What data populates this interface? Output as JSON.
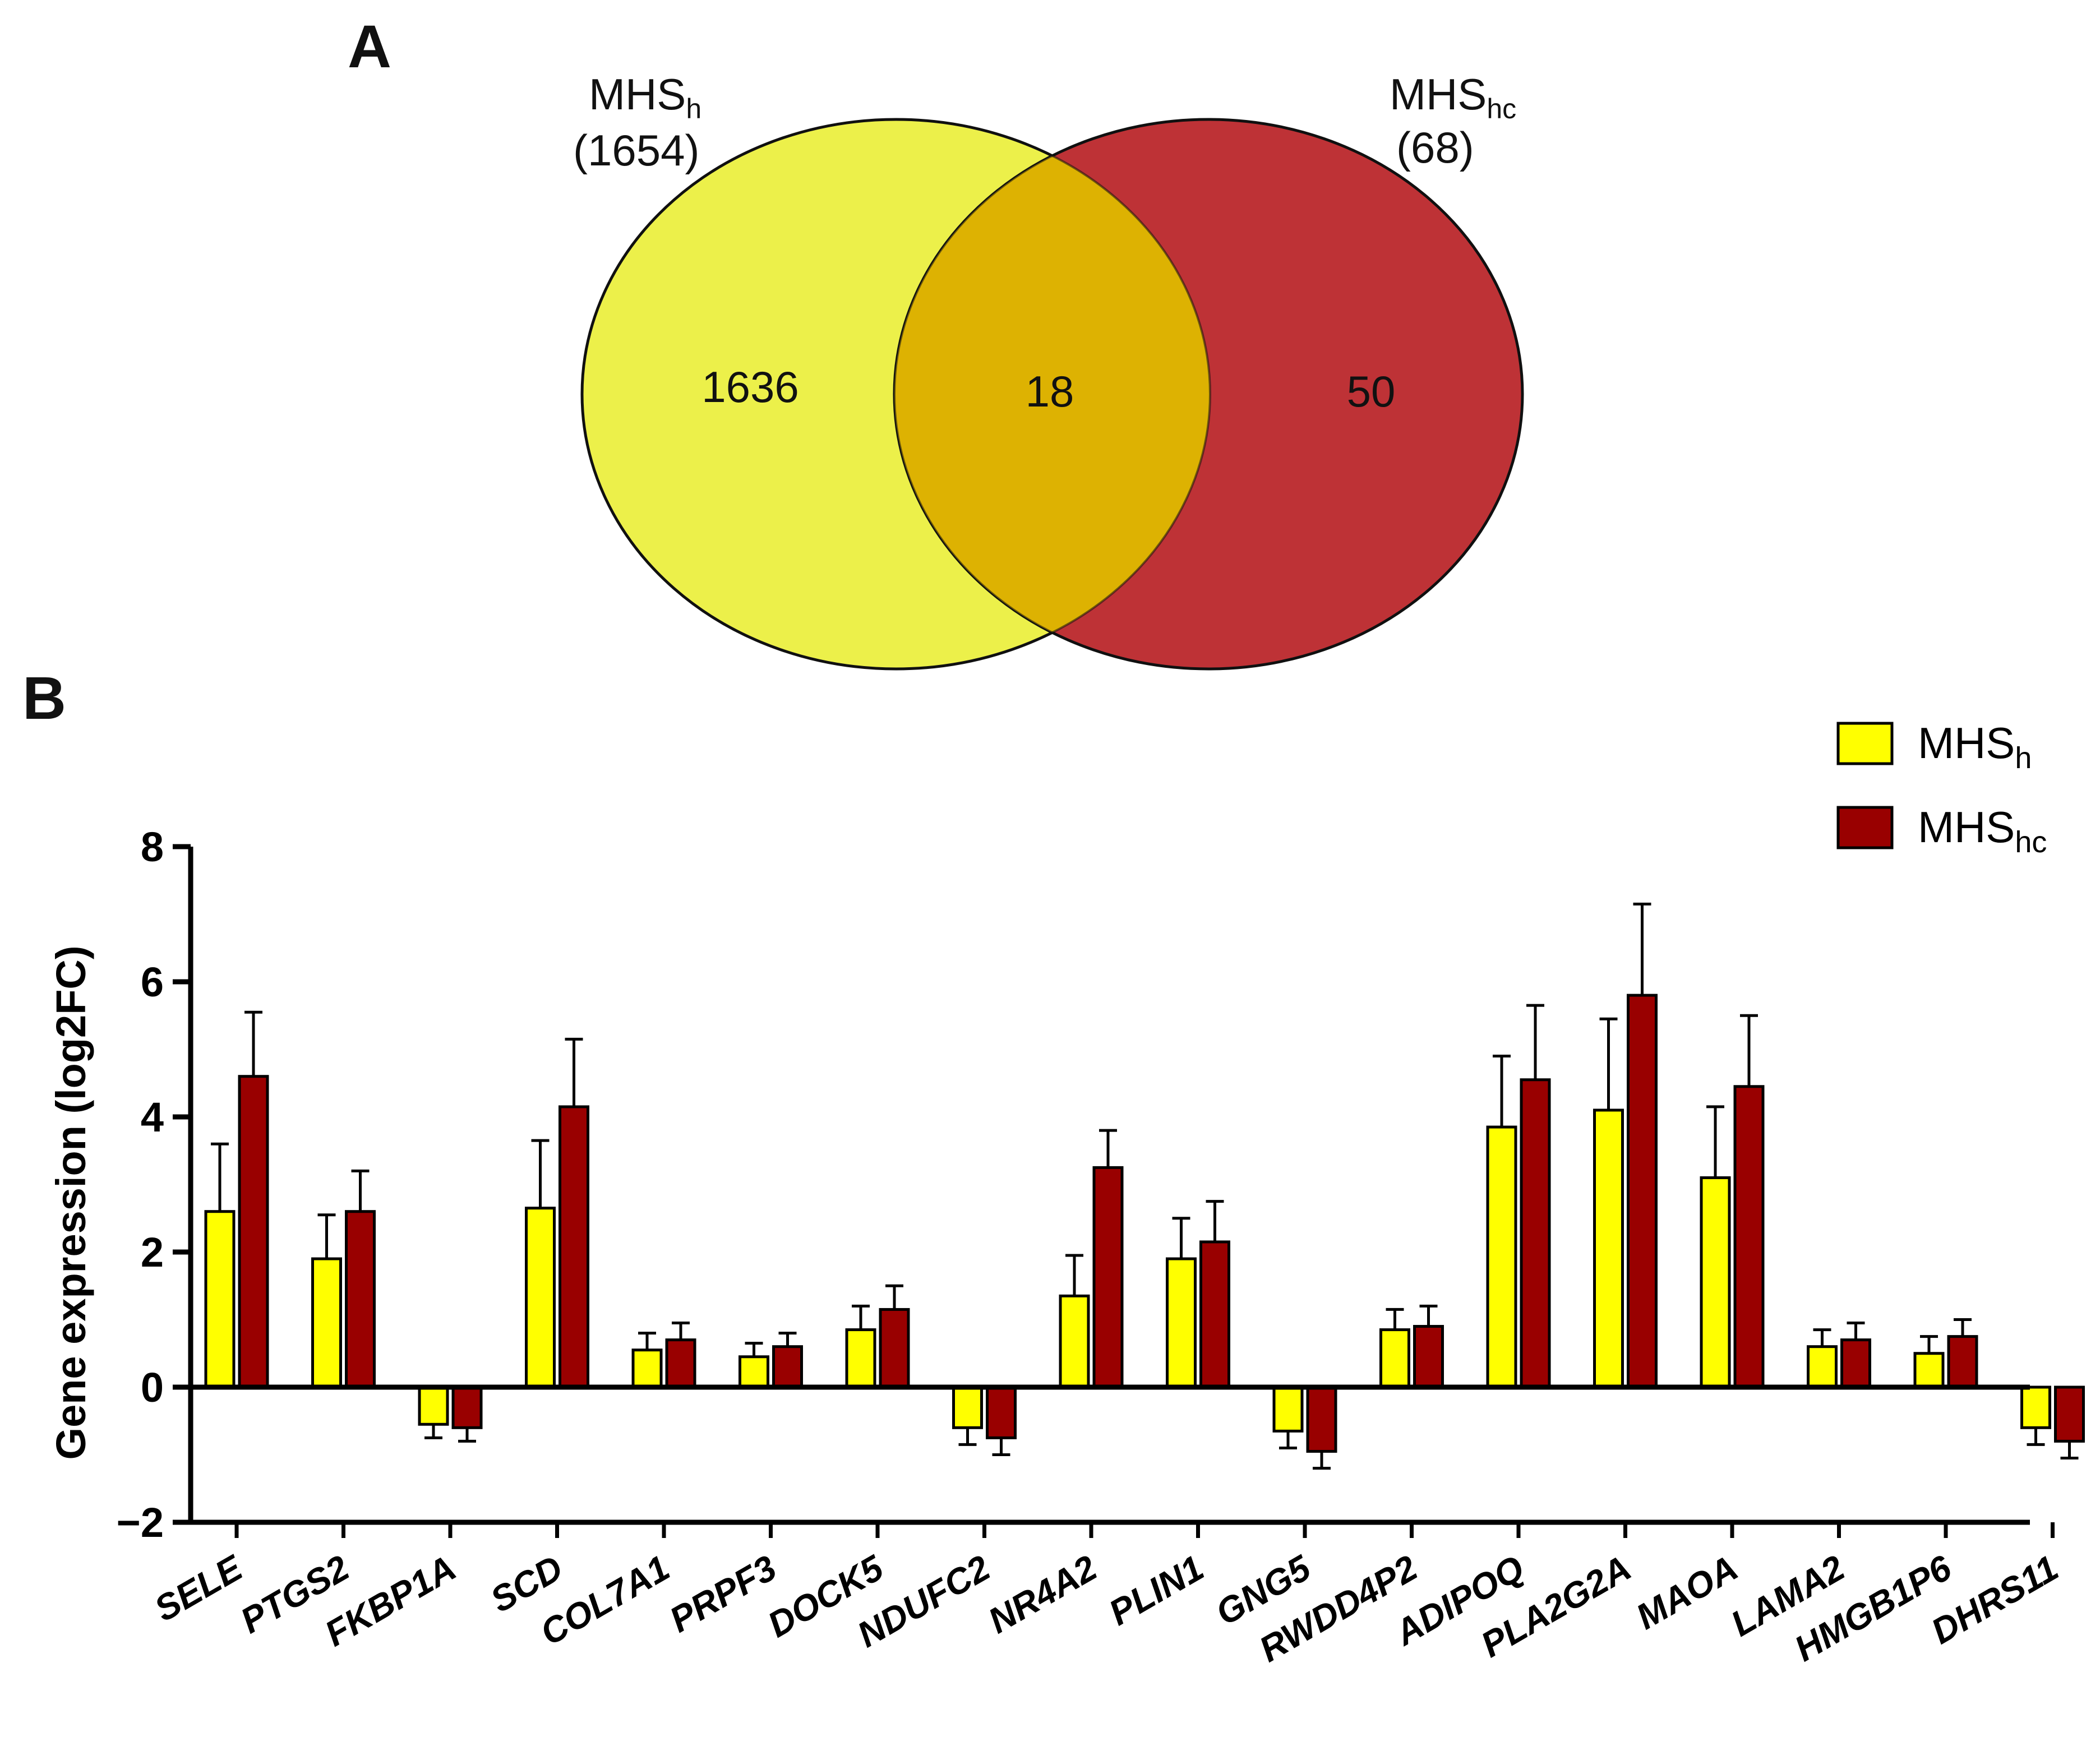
{
  "panel_a_label": "A",
  "panel_b_label": "B",
  "venn": {
    "set1": {
      "name": "MHS",
      "subscript": "h",
      "total": "(1654)",
      "unique": "1636",
      "color": "#ECF04A"
    },
    "set2": {
      "name": "MHS",
      "subscript": "hc",
      "total": "(68)",
      "unique": "50",
      "color": "#BE3236"
    },
    "overlap": {
      "count": "18",
      "color": "#DDB202"
    }
  },
  "chart_data": {
    "type": "bar",
    "title": "",
    "xlabel": "",
    "ylabel": "Gene expression (log2FC)",
    "ylim": [
      -2,
      8
    ],
    "yticks": [
      -2,
      0,
      2,
      4,
      6,
      8
    ],
    "ytick_labels": [
      "−2",
      "0",
      "2",
      "4",
      "6",
      "8"
    ],
    "categories": [
      "SELE",
      "PTGS2",
      "FKBP1A",
      "SCD",
      "COL7A1",
      "PRPF3",
      "DOCK5",
      "NDUFC2",
      "NR4A2",
      "PLIN1",
      "GNG5",
      "RWDD4P2",
      "ADIPOQ",
      "PLA2G2A",
      "MAOA",
      "LAMA2",
      "HMGB1P6",
      "DHRS11"
    ],
    "series": [
      {
        "name": "MHS",
        "subscript": "h",
        "color": "#FFFF00",
        "values": [
          2.6,
          1.9,
          -0.55,
          2.65,
          0.55,
          0.45,
          0.85,
          -0.6,
          1.35,
          1.9,
          -0.65,
          0.85,
          3.85,
          4.1,
          3.1,
          0.6,
          0.5,
          -0.6
        ],
        "errors": [
          1.0,
          0.65,
          0.2,
          1.0,
          0.25,
          0.2,
          0.35,
          0.25,
          0.6,
          0.6,
          0.25,
          0.3,
          1.05,
          1.35,
          1.05,
          0.25,
          0.25,
          0.25
        ]
      },
      {
        "name": "MHS",
        "subscript": "hc",
        "color": "#990000",
        "values": [
          4.6,
          2.6,
          -0.6,
          4.15,
          0.7,
          0.6,
          1.15,
          -0.75,
          3.25,
          2.15,
          -0.95,
          0.9,
          4.55,
          5.8,
          4.45,
          0.7,
          0.75,
          -0.8
        ],
        "errors": [
          0.95,
          0.6,
          0.2,
          1.0,
          0.25,
          0.2,
          0.35,
          0.25,
          0.55,
          0.6,
          0.25,
          0.3,
          1.1,
          1.35,
          1.05,
          0.25,
          0.25,
          0.25
        ]
      }
    ],
    "legend_position": "top-right"
  }
}
